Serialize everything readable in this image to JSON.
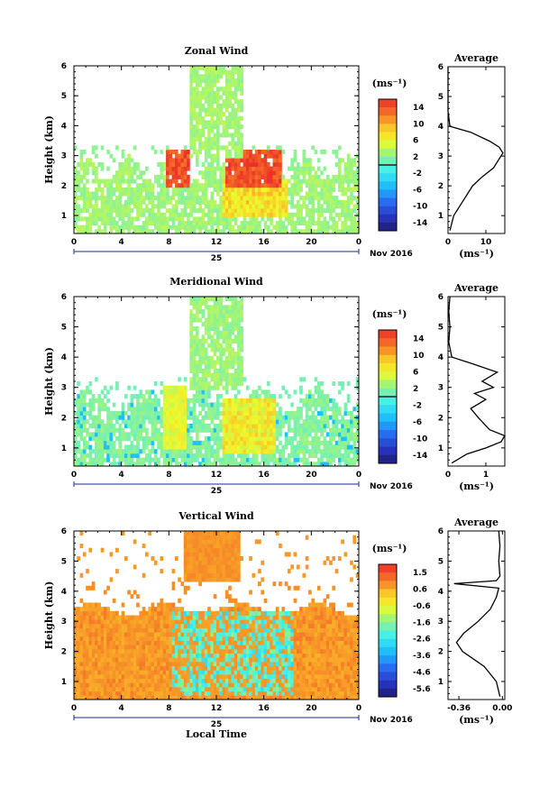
{
  "chart_data": [
    {
      "type": "heatmap",
      "title": "Zonal Wind",
      "ylabel": "Height (km)",
      "xlabel": "",
      "x_ticks": [
        "0",
        "4",
        "8",
        "12",
        "16",
        "20",
        "0"
      ],
      "y_ticks": [
        "1",
        "2",
        "3",
        "4",
        "5",
        "6"
      ],
      "xlim": [
        0,
        24
      ],
      "ylim": [
        0.4,
        6
      ],
      "date_label": "25",
      "month_label": "Nov 2016",
      "colorbar": {
        "unit": "(ms⁻¹)",
        "ticks": [
          "14",
          "10",
          "6",
          "2",
          "-2",
          "-6",
          "-10",
          "-14"
        ],
        "min": -16,
        "max": 16,
        "marked_value": 0
      },
      "average": {
        "title": "Average",
        "unit": "(ms⁻¹)",
        "x_ticks": [
          "0",
          "10"
        ],
        "xlim": [
          0,
          15
        ],
        "heights": [
          0.5,
          1.0,
          1.5,
          2.0,
          2.3,
          2.6,
          2.9,
          3.1,
          3.3,
          3.5,
          3.8,
          4.0,
          4.5,
          5.0,
          5.5,
          6.0
        ],
        "values": [
          0.5,
          1.5,
          4.0,
          6.5,
          9.0,
          12.0,
          13.5,
          14.5,
          13.5,
          11.0,
          6.0,
          0.5,
          0,
          0,
          0,
          0
        ]
      }
    },
    {
      "type": "heatmap",
      "title": "Meridional Wind",
      "ylabel": "Height (km)",
      "xlabel": "",
      "x_ticks": [
        "0",
        "4",
        "8",
        "12",
        "16",
        "20",
        "0"
      ],
      "y_ticks": [
        "1",
        "2",
        "3",
        "4",
        "5",
        "6"
      ],
      "xlim": [
        0,
        24
      ],
      "ylim": [
        0.4,
        6
      ],
      "date_label": "25",
      "month_label": "Nov 2016",
      "colorbar": {
        "unit": "(ms⁻¹)",
        "ticks": [
          "14",
          "10",
          "6",
          "2",
          "-2",
          "-6",
          "-10",
          "-14"
        ],
        "min": -16,
        "max": 16,
        "marked_value": 0
      },
      "average": {
        "title": "Average",
        "unit": "(ms⁻¹)",
        "x_ticks": [
          "0",
          "1"
        ],
        "xlim": [
          0,
          1.5
        ],
        "heights": [
          0.5,
          0.8,
          1.0,
          1.2,
          1.4,
          1.6,
          2.0,
          2.3,
          2.6,
          2.8,
          3.0,
          3.2,
          3.5,
          3.8,
          4.0,
          4.5,
          5.0,
          5.5,
          6.0
        ],
        "values": [
          0.1,
          0.5,
          1.0,
          1.4,
          1.5,
          1.1,
          0.8,
          0.6,
          1.0,
          0.7,
          1.2,
          0.9,
          1.3,
          0.6,
          0.1,
          0.02,
          0.05,
          0.02,
          0.05
        ]
      }
    },
    {
      "type": "heatmap",
      "title": "Vertical Wind",
      "ylabel": "Height (km)",
      "xlabel": "Local Time",
      "x_ticks": [
        "0",
        "4",
        "8",
        "12",
        "16",
        "20",
        "0"
      ],
      "y_ticks": [
        "1",
        "2",
        "3",
        "4",
        "5",
        "6"
      ],
      "xlim": [
        0,
        24
      ],
      "ylim": [
        0.4,
        6
      ],
      "date_label": "25",
      "month_label": "Nov 2016",
      "colorbar": {
        "unit": "(ms⁻¹)",
        "ticks": [
          "1.5",
          "0.6",
          "-0.6",
          "-1.6",
          "-2.6",
          "-3.6",
          "-4.6",
          "-5.6"
        ],
        "min": -6.1,
        "max": 2.0
      },
      "average": {
        "title": "Average",
        "unit": "(ms⁻¹)",
        "x_ticks": [
          "-0.36",
          "0.00"
        ],
        "xlim": [
          -0.45,
          0.02
        ],
        "heights": [
          0.5,
          1.0,
          1.5,
          2.0,
          2.3,
          2.6,
          3.0,
          3.4,
          3.8,
          4.1,
          4.25,
          4.35,
          4.5,
          5.0,
          5.5,
          6.0
        ],
        "values": [
          -0.02,
          -0.05,
          -0.15,
          -0.33,
          -0.38,
          -0.32,
          -0.2,
          -0.1,
          -0.05,
          -0.03,
          -0.4,
          -0.05,
          -0.02,
          -0.03,
          -0.02,
          -0.03
        ]
      }
    }
  ]
}
